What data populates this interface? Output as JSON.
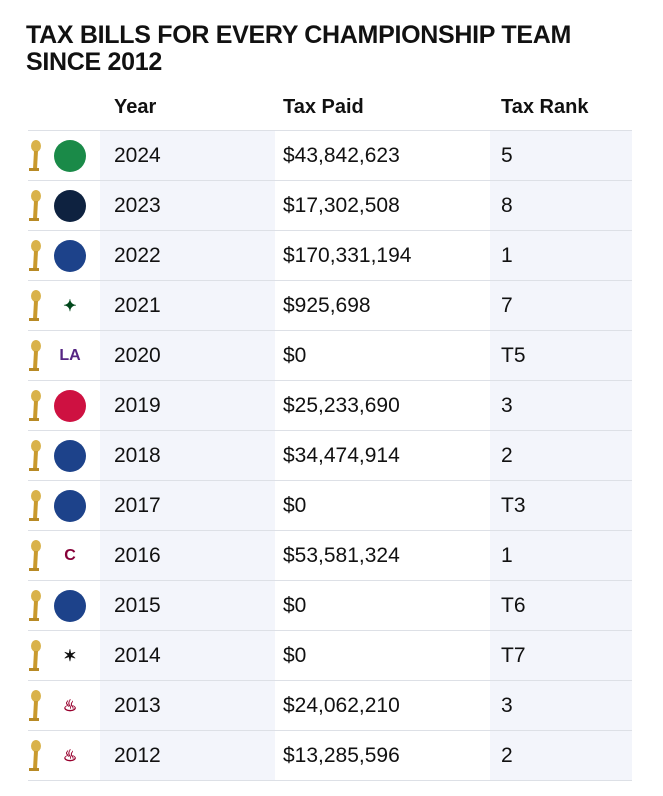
{
  "title": "TAX BILLS FOR EVERY CHAMPIONSHIP TEAM SINCE  2012",
  "headers": [
    "Year",
    "Tax Paid",
    "Tax Rank"
  ],
  "rows": [
    {
      "team": "celtics-logo",
      "color": "#1a8a48",
      "year": "2024",
      "tax": "$43,842,623",
      "rank": "5"
    },
    {
      "team": "nuggets-logo",
      "color": "#0e2240",
      "year": "2023",
      "tax": "$17,302,508",
      "rank": "8"
    },
    {
      "team": "warriors-logo",
      "color": "#1d428a",
      "year": "2022",
      "tax": "$170,331,194",
      "rank": "1"
    },
    {
      "team": "bucks-logo",
      "color": "#ffffff",
      "year": "2021",
      "tax": "$925,698",
      "rank": "7"
    },
    {
      "team": "lakers-logo",
      "color": "#ffffff",
      "year": "2020",
      "tax": "$0",
      "rank": "T5"
    },
    {
      "team": "raptors-logo",
      "color": "#ce1141",
      "year": "2019",
      "tax": "$25,233,690",
      "rank": "3"
    },
    {
      "team": "warriors-logo",
      "color": "#1d428a",
      "year": "2018",
      "tax": "$34,474,914",
      "rank": "2"
    },
    {
      "team": "warriors-logo",
      "color": "#1d428a",
      "year": "2017",
      "tax": "$0",
      "rank": "T3"
    },
    {
      "team": "cavaliers-logo",
      "color": "#ffffff",
      "year": "2016",
      "tax": "$53,581,324",
      "rank": "1"
    },
    {
      "team": "warriors-logo",
      "color": "#1d428a",
      "year": "2015",
      "tax": "$0",
      "rank": "T6"
    },
    {
      "team": "spurs-logo",
      "color": "#ffffff",
      "year": "2014",
      "tax": "$0",
      "rank": "T7"
    },
    {
      "team": "heat-logo",
      "color": "#ffffff",
      "year": "2013",
      "tax": "$24,062,210",
      "rank": "3"
    },
    {
      "team": "heat-logo",
      "color": "#ffffff",
      "year": "2012",
      "tax": "$13,285,596",
      "rank": "2"
    }
  ]
}
